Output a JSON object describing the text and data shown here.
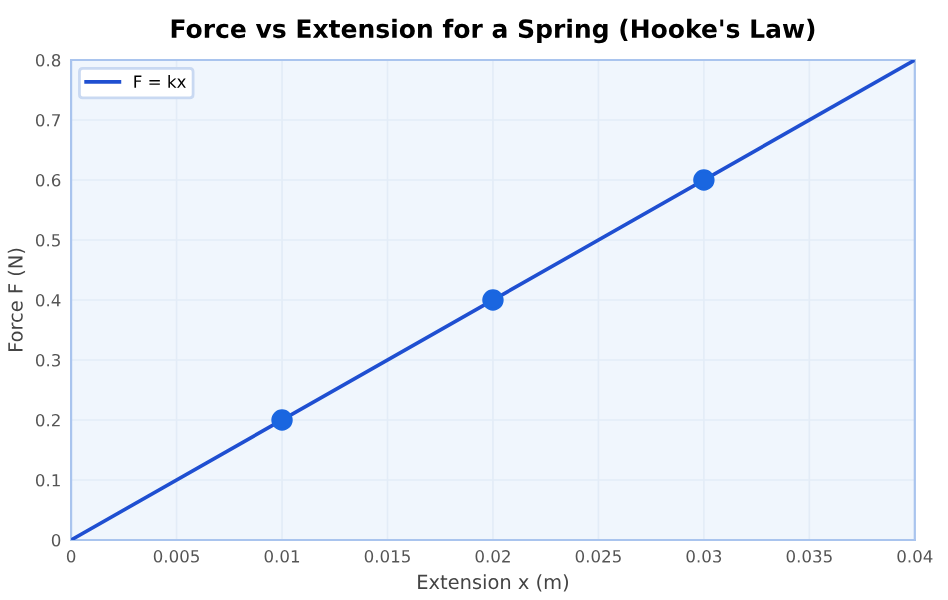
{
  "chart_data": {
    "type": "line",
    "title": "Force vs Extension for a Spring (Hooke's Law)",
    "xlabel": "Extension x (m)",
    "ylabel": "Force F (N)",
    "series": [
      {
        "name": "F = kx",
        "color": "#1f4fd1",
        "x": [
          0,
          0.04
        ],
        "values": [
          0,
          0.8
        ],
        "marker": "none"
      },
      {
        "type": "scatter",
        "color": "#1a66e0",
        "x": [
          0.01,
          0.02,
          0.03
        ],
        "values": [
          0.2,
          0.4,
          0.6
        ],
        "marker": "circle"
      }
    ],
    "xlim": [
      0,
      0.04
    ],
    "ylim": [
      0,
      0.8
    ],
    "xticks": [
      0,
      0.005,
      0.01,
      0.015,
      0.02,
      0.025,
      0.03,
      0.035,
      0.04
    ],
    "yticks": [
      0,
      0.1,
      0.2,
      0.3,
      0.4,
      0.5,
      0.6,
      0.7,
      0.8
    ],
    "grid": true,
    "legend": "top left"
  }
}
